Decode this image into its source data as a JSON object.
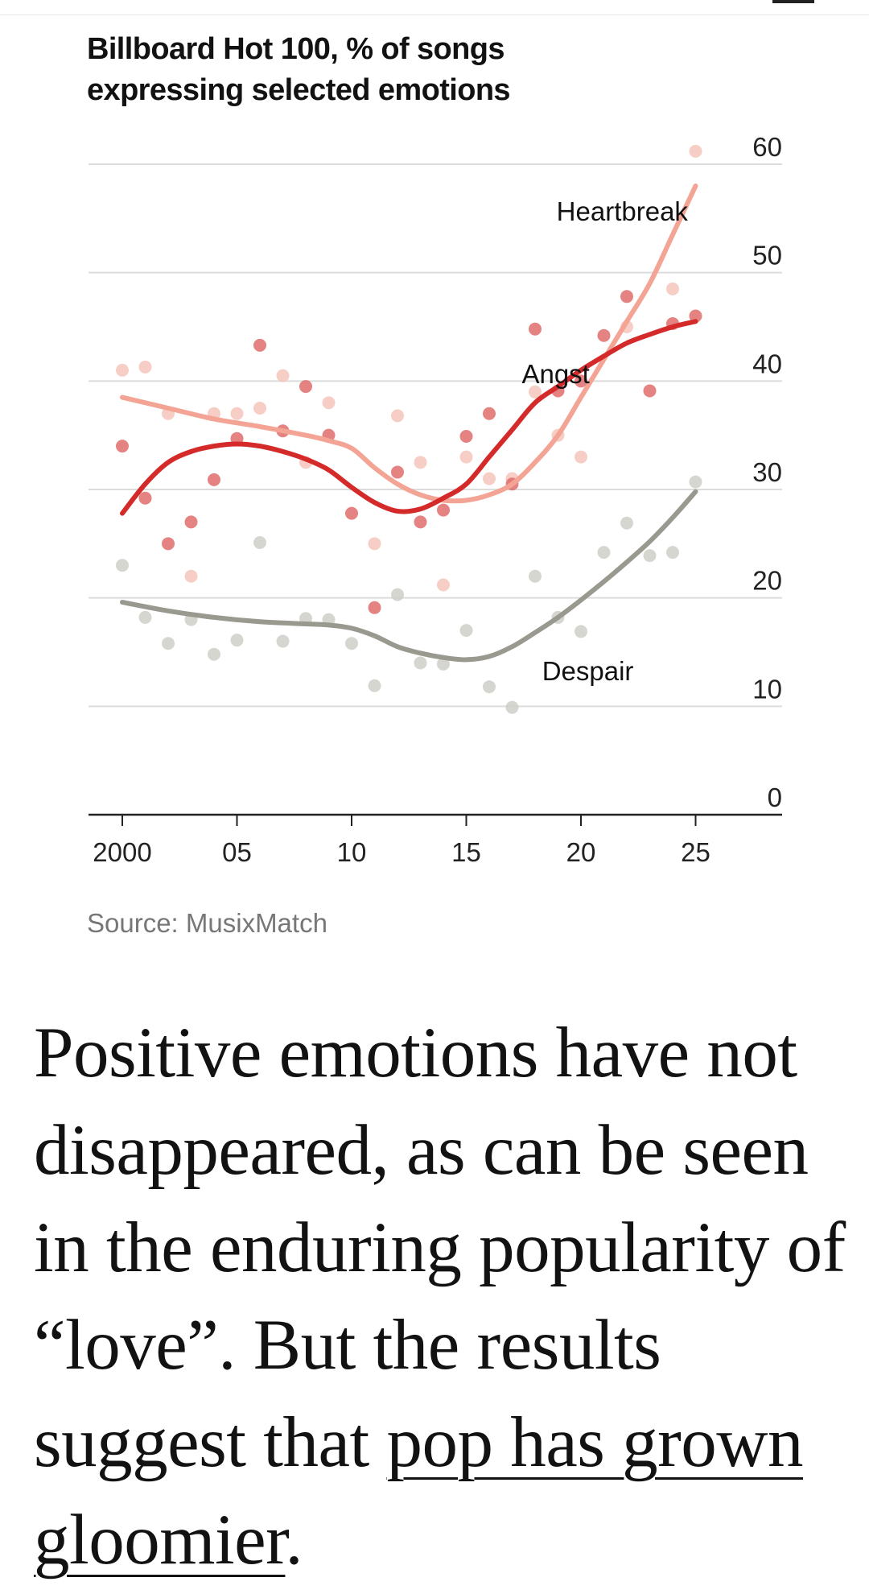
{
  "chart_data": {
    "type": "line",
    "title": "Billboard Hot 100, % of songs expressing selected emotions",
    "title_lines": [
      "Billboard Hot 100, % of songs",
      "expressing selected emotions"
    ],
    "xlabel": "",
    "ylabel": "",
    "xlim": [
      1998.5,
      2028.5
    ],
    "ylim": [
      0,
      60
    ],
    "x_ticks": [
      2000,
      2005,
      2010,
      2015,
      2020,
      2025
    ],
    "x_tick_labels": [
      "2000",
      "05",
      "10",
      "15",
      "20",
      "25"
    ],
    "y_ticks": [
      0,
      10,
      20,
      30,
      40,
      50,
      60
    ],
    "y_tick_labels": [
      "0",
      "10",
      "20",
      "30",
      "40",
      "50",
      "60"
    ],
    "grid": true,
    "y_axis_side": "right",
    "series": [
      {
        "name": "Heartbreak",
        "color": "#f3a494",
        "point_color": "#f6c5bb",
        "trend_x": [
          2000,
          2002,
          2004,
          2006,
          2008,
          2009,
          2010,
          2011,
          2012,
          2013,
          2014,
          2015,
          2016,
          2017,
          2018,
          2019,
          2020,
          2021,
          2022,
          2023,
          2024,
          2025
        ],
        "trend_y": [
          38.5,
          37.5,
          36.5,
          35.8,
          35.0,
          34.5,
          33.8,
          32.0,
          30.5,
          29.5,
          29.0,
          29.0,
          29.5,
          30.5,
          32.5,
          35.0,
          38.5,
          42.0,
          45.5,
          49.0,
          53.5,
          58.0
        ],
        "points": [
          [
            2000,
            41
          ],
          [
            2001,
            41.3
          ],
          [
            2002,
            37
          ],
          [
            2003,
            22
          ],
          [
            2004,
            37
          ],
          [
            2005,
            37
          ],
          [
            2006,
            37.5
          ],
          [
            2007,
            40.5
          ],
          [
            2008,
            32.5
          ],
          [
            2009,
            38
          ],
          [
            2011,
            25
          ],
          [
            2012,
            36.8
          ],
          [
            2013,
            32.5
          ],
          [
            2014,
            21.2
          ],
          [
            2015,
            33
          ],
          [
            2016,
            31
          ],
          [
            2017,
            31
          ],
          [
            2018,
            39
          ],
          [
            2019,
            35
          ],
          [
            2020,
            33
          ],
          [
            2022,
            45
          ],
          [
            2024,
            48.5
          ],
          [
            2025,
            61.2
          ]
        ]
      },
      {
        "name": "Angst",
        "color": "#d42a2a",
        "point_color": "#e06c6c",
        "trend_x": [
          2000,
          2001,
          2002,
          2003,
          2004,
          2005,
          2006,
          2007,
          2008,
          2009,
          2010,
          2011,
          2012,
          2013,
          2014,
          2015,
          2016,
          2017,
          2018,
          2019,
          2020,
          2021,
          2022,
          2023,
          2024,
          2025
        ],
        "trend_y": [
          27.8,
          30.5,
          32.5,
          33.5,
          34.0,
          34.2,
          34.0,
          33.5,
          32.8,
          31.8,
          30.2,
          28.8,
          28.0,
          28.2,
          29.2,
          30.5,
          33.0,
          35.5,
          38.0,
          39.5,
          41.0,
          42.3,
          43.5,
          44.3,
          45.0,
          45.5
        ],
        "points": [
          [
            2000,
            34
          ],
          [
            2001,
            29.2
          ],
          [
            2002,
            25
          ],
          [
            2003,
            27
          ],
          [
            2004,
            30.9
          ],
          [
            2005,
            34.7
          ],
          [
            2006,
            43.3
          ],
          [
            2007,
            35.4
          ],
          [
            2008,
            39.5
          ],
          [
            2009,
            35
          ],
          [
            2010,
            27.8
          ],
          [
            2011,
            19.1
          ],
          [
            2012,
            31.6
          ],
          [
            2013,
            27
          ],
          [
            2014,
            28.1
          ],
          [
            2015,
            34.9
          ],
          [
            2016,
            37
          ],
          [
            2017,
            30.5
          ],
          [
            2018,
            44.8
          ],
          [
            2019,
            39.1
          ],
          [
            2020,
            40
          ],
          [
            2021,
            44.2
          ],
          [
            2022,
            47.8
          ],
          [
            2023,
            39.1
          ],
          [
            2024,
            45.3
          ],
          [
            2025,
            46
          ]
        ]
      },
      {
        "name": "Despair",
        "color": "#9a998f",
        "point_color": "#cfcfc9",
        "trend_x": [
          2000,
          2002,
          2004,
          2006,
          2008,
          2009,
          2010,
          2011,
          2012,
          2013,
          2014,
          2015,
          2016,
          2017,
          2018,
          2019,
          2020,
          2021,
          2022,
          2023,
          2024,
          2025
        ],
        "trend_y": [
          19.6,
          18.8,
          18.2,
          17.8,
          17.6,
          17.5,
          17.2,
          16.5,
          15.5,
          14.9,
          14.5,
          14.3,
          14.6,
          15.5,
          16.8,
          18.2,
          19.8,
          21.5,
          23.3,
          25.2,
          27.4,
          29.8
        ],
        "points": [
          [
            2000,
            23
          ],
          [
            2001,
            18.2
          ],
          [
            2002,
            15.8
          ],
          [
            2003,
            18
          ],
          [
            2004,
            14.8
          ],
          [
            2005,
            16.1
          ],
          [
            2006,
            25.1
          ],
          [
            2007,
            16
          ],
          [
            2008,
            18.1
          ],
          [
            2009,
            18
          ],
          [
            2010,
            15.8
          ],
          [
            2011,
            11.9
          ],
          [
            2012,
            20.3
          ],
          [
            2013,
            14
          ],
          [
            2014,
            13.9
          ],
          [
            2015,
            17
          ],
          [
            2016,
            11.8
          ],
          [
            2017,
            9.9
          ],
          [
            2018,
            22
          ],
          [
            2019,
            18.2
          ],
          [
            2020,
            16.9
          ],
          [
            2021,
            24.2
          ],
          [
            2022,
            26.9
          ],
          [
            2023,
            23.9
          ],
          [
            2024,
            24.2
          ],
          [
            2025,
            30.7
          ]
        ]
      }
    ],
    "annotations": [
      {
        "text": "Heartbreak",
        "x": 2021.8,
        "y": 54.8
      },
      {
        "text": "Angst",
        "x": 2018.9,
        "y": 39.8
      },
      {
        "text": "Despair",
        "x": 2020.3,
        "y": 12.4
      }
    ]
  },
  "source": "Source: MusixMatch",
  "body": {
    "lead": "Positive emotions have not disappeared, as can be seen in the enduring popularity of “love”. But the results suggest that ",
    "link": "pop has grown gloomier",
    "end": "."
  }
}
